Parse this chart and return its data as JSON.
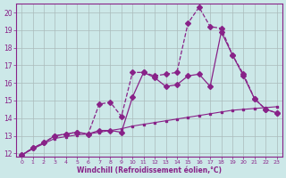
{
  "xlabel": "Windchill (Refroidissement éolien,°C)",
  "bg_color": "#cce8e8",
  "grid_color": "#aabbbb",
  "line_color": "#882288",
  "xlim": [
    -0.5,
    23.5
  ],
  "ylim": [
    11.8,
    20.5
  ],
  "yticks": [
    12,
    13,
    14,
    15,
    16,
    17,
    18,
    19,
    20
  ],
  "xticks": [
    0,
    1,
    2,
    3,
    4,
    5,
    6,
    7,
    8,
    9,
    10,
    11,
    12,
    13,
    14,
    15,
    16,
    17,
    18,
    19,
    20,
    21,
    22,
    23
  ],
  "series": [
    {
      "x": [
        0,
        1,
        2,
        3,
        4,
        5,
        6,
        7,
        8,
        9,
        10,
        11,
        12,
        13,
        14,
        15,
        16,
        17,
        18,
        19,
        20,
        21,
        22,
        23
      ],
      "y": [
        11.9,
        12.25,
        12.55,
        12.85,
        12.95,
        13.05,
        13.1,
        13.2,
        13.3,
        13.4,
        13.55,
        13.65,
        13.75,
        13.85,
        13.95,
        14.05,
        14.15,
        14.25,
        14.35,
        14.45,
        14.5,
        14.55,
        14.6,
        14.65
      ],
      "style": "-",
      "marker": "s",
      "markersize": 2,
      "linewidth": 0.8
    },
    {
      "x": [
        0,
        1,
        2,
        3,
        4,
        5,
        6,
        7,
        8,
        9,
        10,
        11,
        12,
        13,
        14,
        15,
        16,
        17,
        18,
        19,
        20,
        21,
        22,
        23
      ],
      "y": [
        11.9,
        12.3,
        12.6,
        13.0,
        13.1,
        13.2,
        13.1,
        13.3,
        13.3,
        13.2,
        15.2,
        16.6,
        16.3,
        15.8,
        15.9,
        16.4,
        16.5,
        15.8,
        18.9,
        17.6,
        16.4,
        15.1,
        14.5,
        14.3
      ],
      "style": "-",
      "marker": "D",
      "markersize": 3,
      "linewidth": 0.9
    },
    {
      "x": [
        0,
        1,
        2,
        3,
        4,
        5,
        6,
        7,
        8,
        9,
        10,
        11,
        12,
        13,
        14,
        15,
        16,
        17,
        18,
        19,
        20,
        21,
        22,
        23
      ],
      "y": [
        11.9,
        12.3,
        12.6,
        13.0,
        13.1,
        13.2,
        13.1,
        14.8,
        14.9,
        14.1,
        16.6,
        16.6,
        16.4,
        16.5,
        16.6,
        19.4,
        20.3,
        19.2,
        19.1,
        17.6,
        16.5,
        15.1,
        14.5,
        14.3
      ],
      "style": "--",
      "marker": "D",
      "markersize": 3,
      "linewidth": 0.9
    }
  ]
}
